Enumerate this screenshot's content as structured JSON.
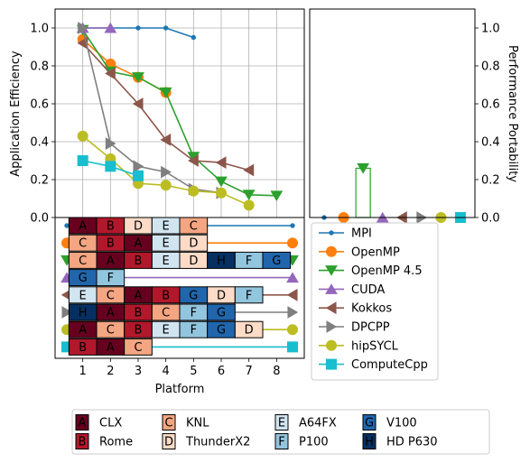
{
  "colors": {
    "MPI": "#1f77b4",
    "OpenMP": "#ff7f0e",
    "OpenMP 4.5": "#2ca02c",
    "CUDA": "#9467bd",
    "Kokkos": "#8c564b",
    "DPCPP": "#7f7f7f",
    "hipSYCL": "#bcbd22",
    "ComputeCpp": "#17becf"
  },
  "chart_data": [
    {
      "type": "line",
      "ylabel": "Application Efficiency",
      "ylim": [
        0,
        1.1
      ],
      "yticks": [
        "0.0",
        "0.2",
        "0.4",
        "0.6",
        "0.8",
        "1.0"
      ],
      "grid": true,
      "x": [
        1,
        2,
        3,
        4,
        5,
        6,
        7,
        8
      ],
      "series": [
        {
          "name": "MPI",
          "marker": "circle-small",
          "x": [
            1,
            2,
            3,
            4,
            5
          ],
          "values": [
            1.0,
            1.0,
            1.0,
            1.0,
            0.95
          ]
        },
        {
          "name": "OpenMP",
          "marker": "circle",
          "x": [
            1,
            2,
            3,
            4
          ],
          "values": [
            0.94,
            0.81,
            0.74,
            0.66
          ]
        },
        {
          "name": "OpenMP 4.5",
          "marker": "triangle-down",
          "x": [
            1,
            2,
            3,
            4,
            5,
            6,
            7,
            8
          ],
          "values": [
            0.99,
            0.77,
            0.74,
            0.66,
            0.32,
            0.19,
            0.12,
            0.115
          ]
        },
        {
          "name": "CUDA",
          "marker": "triangle-up",
          "x": [
            1,
            2
          ],
          "values": [
            1.0,
            1.0
          ]
        },
        {
          "name": "Kokkos",
          "marker": "triangle-left",
          "x": [
            1,
            2,
            3,
            4,
            5,
            6,
            7
          ],
          "values": [
            0.92,
            0.76,
            0.6,
            0.41,
            0.3,
            0.29,
            0.25
          ]
        },
        {
          "name": "DPCPP",
          "marker": "triangle-right",
          "x": [
            1,
            2,
            3,
            4,
            5,
            6
          ],
          "values": [
            1.0,
            0.39,
            0.27,
            0.24,
            0.15,
            0.13
          ]
        },
        {
          "name": "hipSYCL",
          "marker": "circle",
          "x": [
            1,
            2,
            3,
            4,
            5,
            6,
            7
          ],
          "values": [
            0.43,
            0.31,
            0.18,
            0.17,
            0.14,
            0.13,
            0.065
          ]
        },
        {
          "name": "ComputeCpp",
          "marker": "square",
          "x": [
            1,
            2,
            3
          ],
          "values": [
            0.3,
            0.27,
            0.22
          ]
        }
      ]
    },
    {
      "type": "bar",
      "ylabel": "Performance Portability",
      "ylim": [
        0,
        1.1
      ],
      "yticks": [
        "0.0",
        "0.2",
        "0.4",
        "0.6",
        "0.8",
        "1.0"
      ],
      "categories": [
        "MPI",
        "OpenMP",
        "OpenMP 4.5",
        "CUDA",
        "Kokkos",
        "DPCPP",
        "hipSYCL",
        "ComputeCpp"
      ],
      "values": [
        0,
        0,
        0.26,
        0,
        0,
        0,
        0,
        0
      ],
      "markers": [
        "circle-small",
        "circle",
        "triangle-down",
        "triangle-up",
        "triangle-left",
        "triangle-right",
        "circle",
        "square"
      ]
    },
    {
      "type": "table",
      "xlabel": "Platform",
      "xticks": [
        "1",
        "2",
        "3",
        "4",
        "5",
        "6",
        "7",
        "8"
      ],
      "rows": [
        {
          "name": "MPI",
          "marker": "circle-small",
          "cells": [
            "A",
            "B",
            "D",
            "E",
            "C"
          ]
        },
        {
          "name": "OpenMP",
          "marker": "circle",
          "cells": [
            "C",
            "B",
            "A",
            "E",
            "D"
          ]
        },
        {
          "name": "OpenMP 4.5",
          "marker": "triangle-down",
          "cells": [
            "C",
            "A",
            "B",
            "E",
            "D",
            "H",
            "F",
            "G"
          ]
        },
        {
          "name": "CUDA",
          "marker": "triangle-up",
          "cells": [
            "G",
            "F"
          ]
        },
        {
          "name": "Kokkos",
          "marker": "triangle-left",
          "cells": [
            "E",
            "C",
            "A",
            "B",
            "G",
            "D",
            "F"
          ]
        },
        {
          "name": "DPCPP",
          "marker": "triangle-right",
          "cells": [
            "H",
            "A",
            "B",
            "C",
            "F",
            "G"
          ]
        },
        {
          "name": "hipSYCL",
          "marker": "circle",
          "cells": [
            "A",
            "C",
            "B",
            "E",
            "F",
            "G",
            "D"
          ]
        },
        {
          "name": "ComputeCpp",
          "marker": "square",
          "cells": [
            "B",
            "A",
            "C"
          ]
        }
      ]
    }
  ],
  "platforms": [
    {
      "letter": "A",
      "name": "CLX",
      "color": "#67001f",
      "text": "#000000"
    },
    {
      "letter": "B",
      "name": "Rome",
      "color": "#b2182b",
      "text": "#000000"
    },
    {
      "letter": "C",
      "name": "KNL",
      "color": "#f4a582",
      "text": "#000000"
    },
    {
      "letter": "D",
      "name": "ThunderX2",
      "color": "#fddbc7",
      "text": "#000000"
    },
    {
      "letter": "E",
      "name": "A64FX",
      "color": "#d1e5f0",
      "text": "#000000"
    },
    {
      "letter": "F",
      "name": "P100",
      "color": "#92c5de",
      "text": "#000000"
    },
    {
      "letter": "G",
      "name": "V100",
      "color": "#2166ac",
      "text": "#000000"
    },
    {
      "letter": "H",
      "name": "HD P630",
      "color": "#053061",
      "text": "#000000"
    }
  ]
}
